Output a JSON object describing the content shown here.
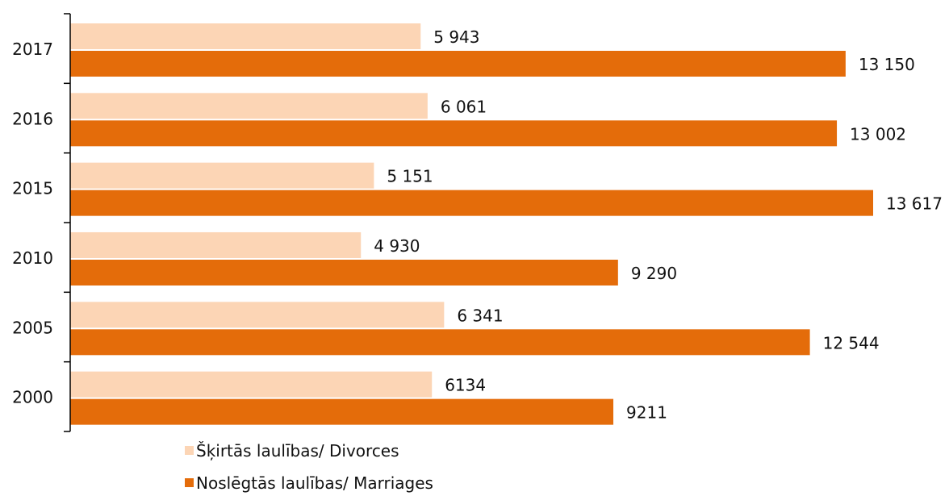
{
  "chart_data": {
    "type": "bar",
    "orientation": "horizontal",
    "title": "",
    "xlabel": "",
    "ylabel": "",
    "categories": [
      "2017",
      "2016",
      "2015",
      "2010",
      "2005",
      "2000"
    ],
    "series": [
      {
        "name": "Šķirtās laulības/ Divorces",
        "color": "#fcd5b5",
        "values": [
          5943,
          6061,
          5151,
          4930,
          6341,
          6134
        ],
        "labels": [
          "5 943",
          "6 061",
          "5 151",
          "4 930",
          "6 341",
          "6134"
        ]
      },
      {
        "name": "Noslēgtās laulības/ Marriages",
        "color": "#e46c0a",
        "values": [
          13150,
          13002,
          13617,
          9290,
          12544,
          9211
        ],
        "labels": [
          "13 150",
          "13 002",
          "13 617",
          "9 290",
          "12 544",
          "9211"
        ]
      }
    ],
    "xlim": [
      0,
      14000
    ],
    "grid": false,
    "legend": "bottom"
  }
}
